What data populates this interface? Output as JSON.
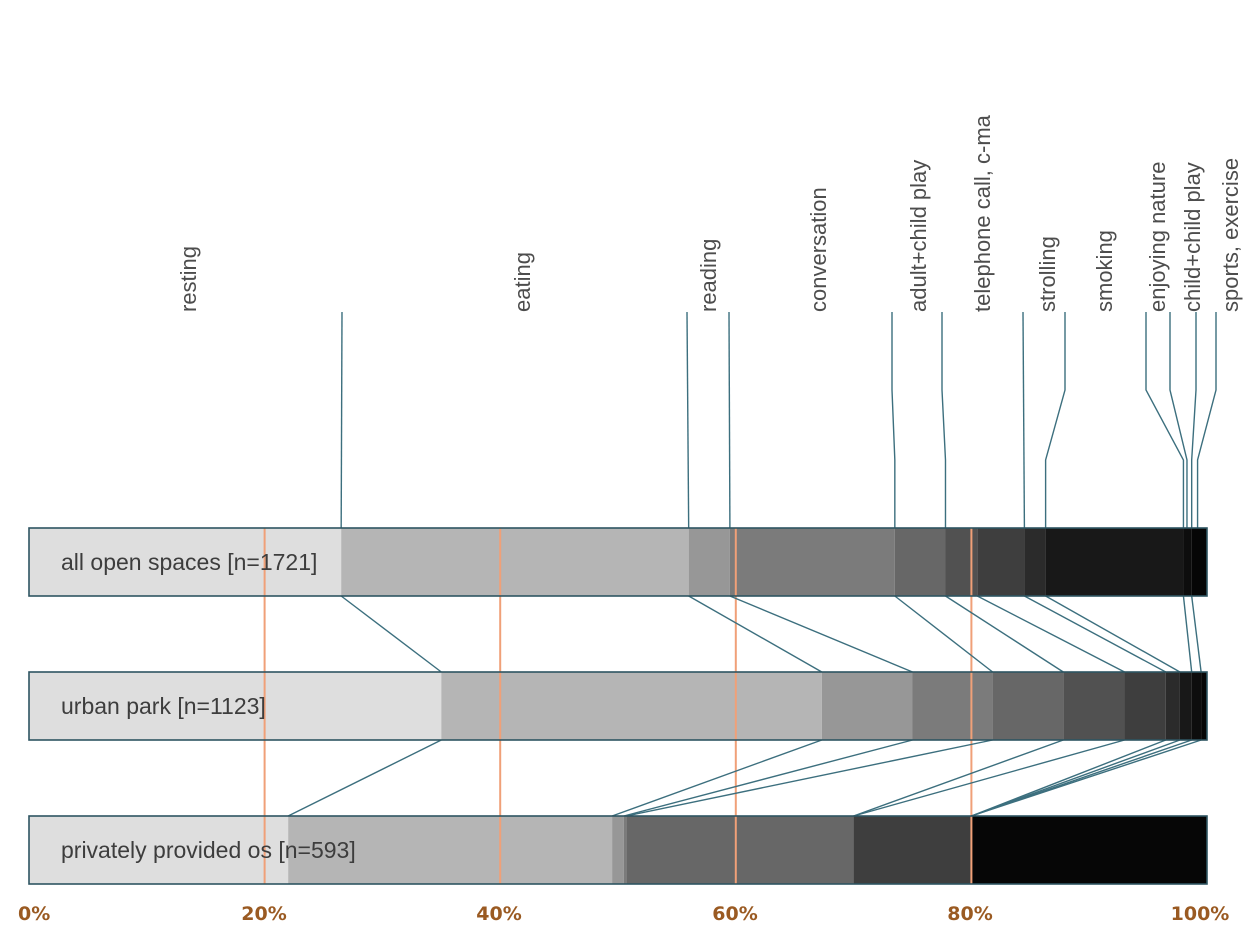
{
  "chart_data": {
    "type": "bar",
    "stacked": true,
    "orientation": "horizontal",
    "normalized_percent": true,
    "xlim": [
      0,
      100
    ],
    "x_ticks": [
      "0%",
      "20%",
      "40%",
      "60%",
      "80%",
      "100%"
    ],
    "activities": [
      "resting",
      "eating",
      "reading",
      "conversation",
      "adult+child play",
      "telephone call, c-ma",
      "strolling",
      "smoking",
      "enjoying nature",
      "child+child play",
      "sports, exercise"
    ],
    "activity_label_anchor_pct": [
      26.5,
      56,
      59.5,
      73.5,
      77.8,
      84.5,
      86.3,
      98,
      98.3,
      98.7,
      99.2
    ],
    "reference_lines_pct": [
      20,
      40,
      60,
      80
    ],
    "segment_colors": [
      "#dedede",
      "#b5b5b5",
      "#979797",
      "#7b7b7b",
      "#676767",
      "#515151",
      "#3e3e3e",
      "#2b2b2b",
      "#181818",
      "#0d0d0d",
      "#060606"
    ],
    "categories": [
      "all open spaces [n=1721]",
      "urban park [n=1123]",
      "privately provided os [n=593]"
    ],
    "cumulative_boundaries_pct": [
      [
        26.5,
        56.0,
        59.5,
        73.5,
        77.8,
        80.5,
        84.5,
        86.3,
        98.0,
        98.7,
        100
      ],
      [
        35.0,
        67.3,
        75.0,
        81.8,
        87.8,
        93.0,
        96.5,
        97.7,
        98.7,
        99.5,
        100
      ],
      [
        22.0,
        49.5,
        50.5,
        50.7,
        70.0,
        70.0,
        80.0,
        80.0,
        80.0,
        80.0,
        100
      ]
    ]
  },
  "colors": {
    "border": "#2e5562",
    "connector": "#3c6f7e",
    "reference_line": "#f0a078",
    "tick_text": "#9a5a22"
  }
}
